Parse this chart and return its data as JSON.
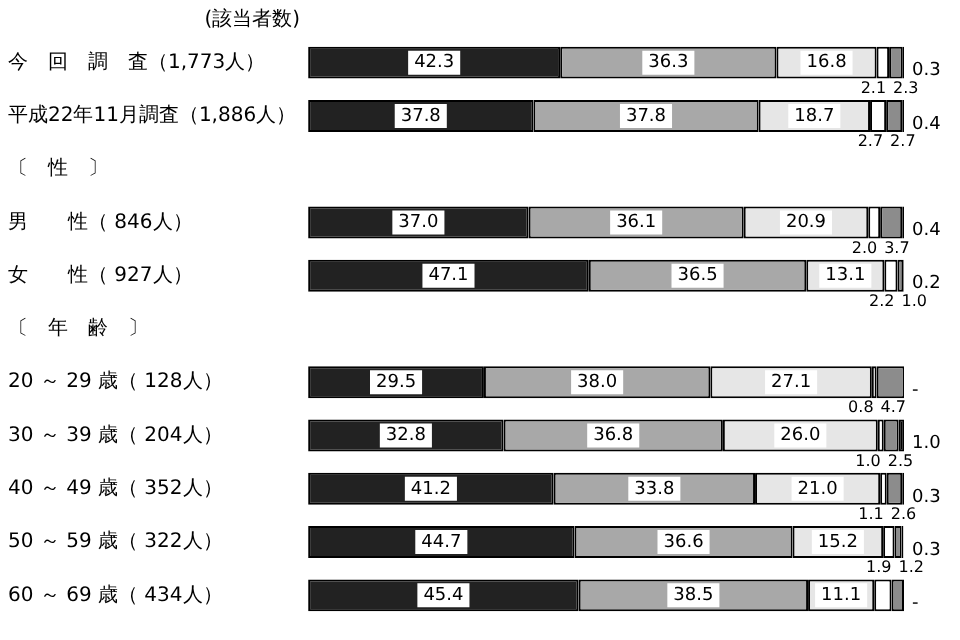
{
  "chart_data": {
    "type": "bar",
    "orientation": "horizontal",
    "stacked": true,
    "ylabel": "(該当者数)",
    "categories": [
      "今　回　調　査（1,773人）",
      "平成22年11月調査（1,886人）",
      "〔　性　〕",
      "男　　性（ 846人）",
      "女　　性（ 927人）",
      "〔　年　齢　〕",
      "20 ～ 29 歳（ 128人）",
      "30 ～ 39 歳（ 204人）",
      "40 ～ 49 歳（ 352人）",
      "50 ～ 59 歳（ 322人）",
      "60 ～ 69 歳（ 434人）"
    ],
    "xlim": [
      0,
      100
    ],
    "tick_labels": "y",
    "grid": false,
    "legend": false,
    "series": [
      {
        "color": "#222222",
        "values": [
          42.3,
          37.8,
          null,
          37.0,
          47.1,
          null,
          29.5,
          32.8,
          41.2,
          44.7,
          45.4
        ],
        "value_labels": [
          "42.3",
          "37.8",
          null,
          "37.0",
          "47.1",
          null,
          "29.5",
          "32.8",
          "41.2",
          "44.7",
          "45.4"
        ]
      },
      {
        "color": "#a8a8a8",
        "values": [
          36.3,
          37.8,
          null,
          36.1,
          36.5,
          null,
          38.0,
          36.8,
          33.8,
          36.6,
          38.5
        ],
        "value_labels": [
          "36.3",
          "37.8",
          null,
          "36.1",
          "36.5",
          null,
          "38.0",
          "36.8",
          "33.8",
          "36.6",
          "38.5"
        ]
      },
      {
        "color": "#e6e6e6",
        "values": [
          16.8,
          18.7,
          null,
          20.9,
          13.1,
          null,
          27.1,
          26.0,
          21.0,
          15.2,
          11.1
        ],
        "value_labels": [
          "16.8",
          "18.7",
          null,
          "20.9",
          "13.1",
          null,
          "27.1",
          "26.0",
          "21.0",
          "15.2",
          "11.1"
        ]
      },
      {
        "color": "#ffffff",
        "values": [
          2.1,
          2.7,
          null,
          2.0,
          2.2,
          null,
          0.8,
          1.0,
          1.1,
          1.9,
          2.9
        ],
        "value_labels": [
          "2.1",
          "2.7",
          null,
          "2.0",
          "2.2",
          null,
          "0.8",
          "1.0",
          "1.1",
          "1.9",
          null
        ]
      },
      {
        "color": "#8c8c8c",
        "values": [
          2.3,
          2.7,
          null,
          3.7,
          1.0,
          null,
          4.7,
          2.5,
          2.6,
          1.2,
          2.1
        ],
        "value_labels": [
          "2.3",
          "2.7",
          null,
          "3.7",
          "1.0",
          null,
          "4.7",
          "2.5",
          "2.6",
          "1.2",
          null
        ]
      },
      {
        "color": "#000000",
        "values": [
          0.3,
          0.4,
          null,
          0.4,
          0.2,
          null,
          null,
          1.0,
          0.3,
          0.3,
          null
        ],
        "value_labels": [
          "0.3",
          "0.4",
          null,
          "0.4",
          "0.2",
          null,
          "-",
          "1.0",
          "0.3",
          "0.3",
          "-"
        ]
      }
    ]
  }
}
